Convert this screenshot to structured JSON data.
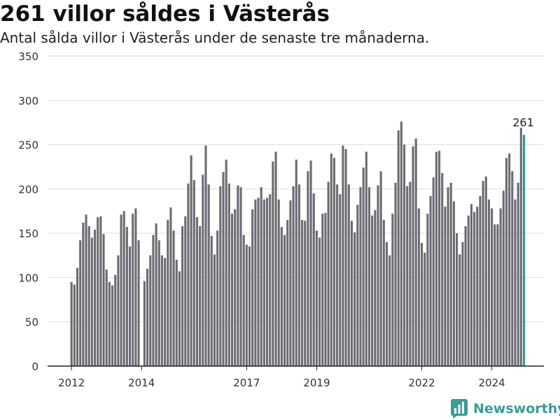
{
  "title": "261 villor såldes i Västerås",
  "subtitle": "Antal sålda villor i Västerås under de senaste tre månaderna.",
  "brand": {
    "name": "Newsworthy",
    "icon": "newsworthy-logo-icon",
    "color": "#3a9e92"
  },
  "chart_data": {
    "type": "bar",
    "title": "261 villor såldes i Västerås",
    "subtitle": "Antal sålda villor i Västerås under de senaste tre månaderna.",
    "x_start": "2012-01",
    "interval": "month",
    "x_tick_labels": [
      "2012",
      "2014",
      "2017",
      "2019",
      "2022",
      "2024"
    ],
    "x_tick_months": [
      "2012-01",
      "2014-01",
      "2017-01",
      "2019-01",
      "2022-01",
      "2024-01"
    ],
    "ylim": [
      0,
      350
    ],
    "y_ticks": [
      0,
      50,
      100,
      150,
      200,
      250,
      300,
      350
    ],
    "grid": true,
    "bar_color": "#6c6b72",
    "highlight_color": "#2a9d8f",
    "highlight_label": "261",
    "values": [
      95,
      92,
      111,
      142,
      162,
      171,
      158,
      145,
      154,
      168,
      169,
      149,
      109,
      95,
      91,
      103,
      125,
      171,
      175,
      157,
      135,
      172,
      178,
      142,
      null,
      96,
      110,
      125,
      148,
      161,
      142,
      125,
      122,
      165,
      179,
      153,
      120,
      107,
      158,
      169,
      206,
      238,
      210,
      168,
      158,
      216,
      249,
      205,
      147,
      126,
      153,
      203,
      219,
      233,
      206,
      172,
      177,
      204,
      202,
      148,
      137,
      135,
      177,
      188,
      190,
      202,
      188,
      190,
      194,
      231,
      242,
      188,
      157,
      148,
      165,
      187,
      203,
      233,
      205,
      165,
      164,
      220,
      232,
      195,
      153,
      145,
      172,
      173,
      208,
      240,
      235,
      205,
      194,
      249,
      245,
      205,
      164,
      151,
      182,
      202,
      224,
      242,
      202,
      170,
      176,
      204,
      220,
      165,
      140,
      125,
      172,
      207,
      266,
      276,
      250,
      203,
      208,
      248,
      257,
      178,
      139,
      128,
      172,
      192,
      213,
      242,
      243,
      218,
      180,
      202,
      207,
      186,
      150,
      126,
      140,
      158,
      170,
      183,
      174,
      180,
      192,
      209,
      214,
      188,
      178,
      160,
      160,
      178,
      198,
      235,
      240,
      220,
      188,
      207,
      269,
      261
    ]
  }
}
